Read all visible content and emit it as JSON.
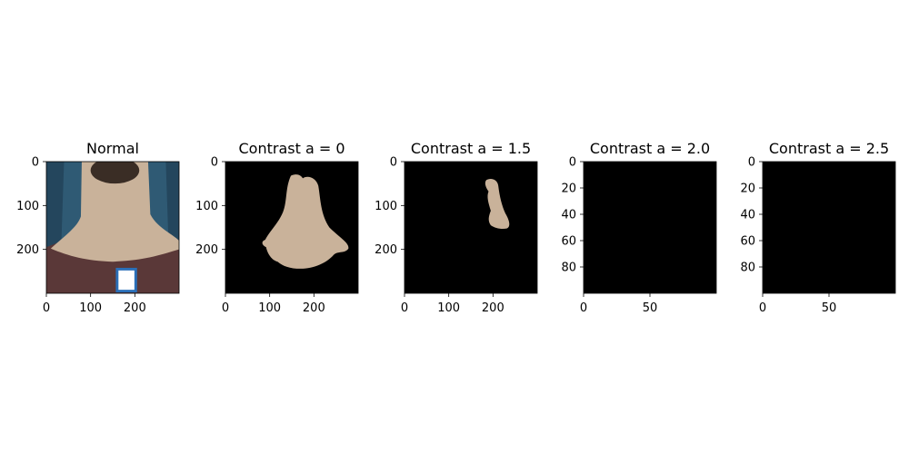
{
  "chart_data": [
    {
      "type": "image",
      "title": "Normal",
      "image_size": [
        300,
        300
      ],
      "xlim": [
        0,
        300
      ],
      "ylim": [
        300,
        0
      ],
      "xticks": [
        0,
        100,
        200
      ],
      "yticks": [
        0,
        100,
        200
      ],
      "content": "photo of back of neck with shirt collar and label"
    },
    {
      "type": "image",
      "title": "Contrast a = 0",
      "image_size": [
        300,
        300
      ],
      "xlim": [
        0,
        300
      ],
      "ylim": [
        300,
        0
      ],
      "xticks": [
        0,
        100,
        200
      ],
      "yticks": [
        0,
        100,
        200
      ],
      "content": "segmented skin region on black background"
    },
    {
      "type": "image",
      "title": "Contrast a = 1.5",
      "image_size": [
        300,
        300
      ],
      "xlim": [
        0,
        300
      ],
      "ylim": [
        300,
        0
      ],
      "xticks": [
        0,
        100,
        200
      ],
      "yticks": [
        0,
        100,
        200
      ],
      "content": "small segmented skin region on black background"
    },
    {
      "type": "image",
      "title": "Contrast a = 2.0",
      "image_size": [
        100,
        100
      ],
      "xlim": [
        0,
        100
      ],
      "ylim": [
        100,
        0
      ],
      "xticks": [
        0,
        50
      ],
      "yticks": [
        0,
        20,
        40,
        60,
        80
      ],
      "content": "all black"
    },
    {
      "type": "image",
      "title": "Contrast a = 2.5",
      "image_size": [
        100,
        100
      ],
      "xlim": [
        0,
        100
      ],
      "ylim": [
        100,
        0
      ],
      "xticks": [
        0,
        50
      ],
      "yticks": [
        0,
        20,
        40,
        60,
        80
      ],
      "content": "all black"
    }
  ],
  "colors": {
    "background": "#000000",
    "skin": "#c9b29a",
    "skin_dark": "#a89078",
    "curtain": "#2f5a74",
    "shirt": "#5a3838",
    "label": "#2a6fb8"
  }
}
